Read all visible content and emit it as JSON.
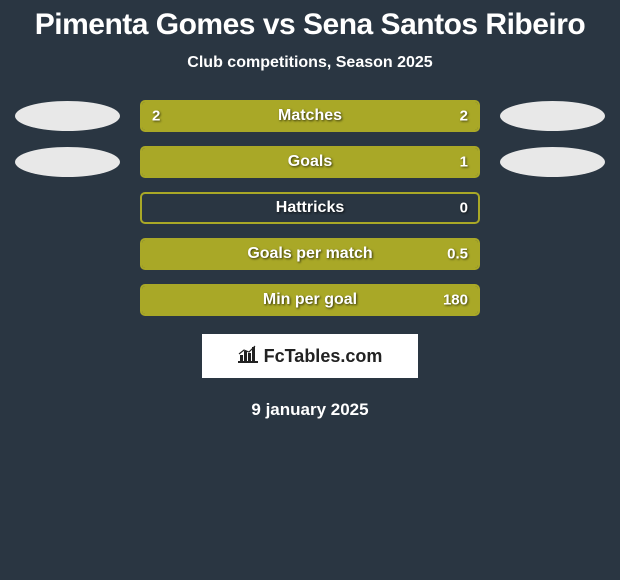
{
  "title": "Pimenta Gomes vs Sena Santos Ribeiro",
  "subtitle": "Club competitions, Season 2025",
  "date": "9 january 2025",
  "logo_text": "FcTables.com",
  "colors": {
    "background": "#2a3642",
    "left_accent": "#e8e8e8",
    "right_accent": "#e8e8e8",
    "bar_fill": "#a9a827",
    "bar_border": "#a9a827",
    "text": "#ffffff"
  },
  "stats": [
    {
      "label": "Matches",
      "left_value": "2",
      "right_value": "2",
      "left_pct": 50,
      "right_pct": 50,
      "show_ellipses": true
    },
    {
      "label": "Goals",
      "left_value": "",
      "right_value": "1",
      "left_pct": 0,
      "right_pct": 100,
      "show_ellipses": true
    },
    {
      "label": "Hattricks",
      "left_value": "",
      "right_value": "0",
      "left_pct": 0,
      "right_pct": 0,
      "show_ellipses": false
    },
    {
      "label": "Goals per match",
      "left_value": "",
      "right_value": "0.5",
      "left_pct": 0,
      "right_pct": 100,
      "show_ellipses": false
    },
    {
      "label": "Min per goal",
      "left_value": "",
      "right_value": "180",
      "left_pct": 0,
      "right_pct": 100,
      "show_ellipses": false
    }
  ]
}
